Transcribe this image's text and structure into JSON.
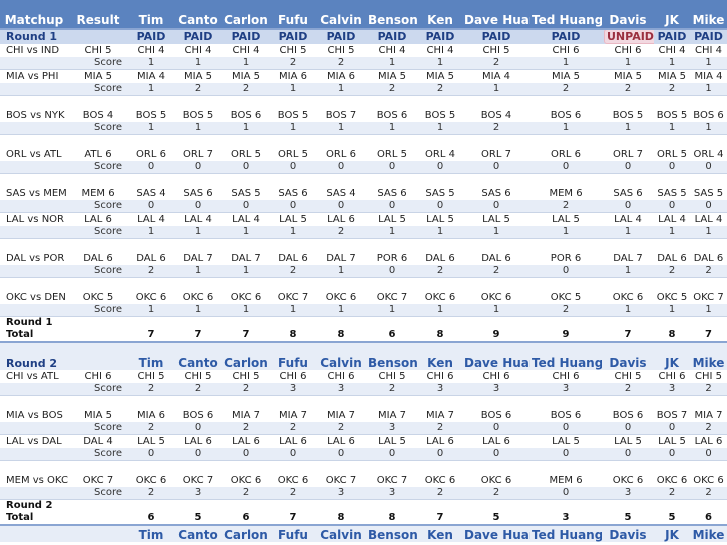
{
  "columns": [
    "Matchup",
    "Result",
    "Tim",
    "Canto",
    "Carlon",
    "Fufu",
    "Calvin",
    "Benson",
    "Ken",
    "Dave Huang",
    "Ted Huang",
    "Davis",
    "JK",
    "Mike"
  ],
  "round1": {
    "label": "Round 1",
    "status": [
      "PAID",
      "PAID",
      "PAID",
      "PAID",
      "PAID",
      "PAID",
      "PAID",
      "PAID",
      "PAID",
      "UNPAID",
      "PAID",
      "PAID"
    ],
    "games": [
      {
        "matchup": "CHI vs IND",
        "result": "CHI 5",
        "picks": [
          "CHI 4",
          "CHI 4",
          "CHI 4",
          "CHI 5",
          "CHI 5",
          "CHI 4",
          "CHI 4",
          "CHI 5",
          "CHI 6",
          "CHI 6",
          "CHI 4",
          "CHI 4"
        ],
        "score_label": "Score",
        "scores": [
          "1",
          "1",
          "1",
          "2",
          "2",
          "1",
          "1",
          "2",
          "1",
          "1",
          "1",
          "1"
        ],
        "tall": false
      },
      {
        "matchup": "MIA vs PHI",
        "result": "MIA 5",
        "picks": [
          "MIA 4",
          "MIA 5",
          "MIA 5",
          "MIA 6",
          "MIA 6",
          "MIA 5",
          "MIA 5",
          "MIA 4",
          "MIA 5",
          "MIA 5",
          "MIA 5",
          "MIA 4"
        ],
        "score_label": "Score",
        "scores": [
          "1",
          "2",
          "2",
          "1",
          "1",
          "2",
          "2",
          "1",
          "2",
          "2",
          "2",
          "1"
        ],
        "tall": false
      },
      {
        "matchup": "BOS vs NYK",
        "result": "BOS 4",
        "picks": [
          "BOS 5",
          "BOS 5",
          "BOS 6",
          "BOS 5",
          "BOS 7",
          "BOS 6",
          "BOS 5",
          "BOS 4",
          "BOS 6",
          "BOS 5",
          "BOS 5",
          "BOS 6"
        ],
        "score_label": "Score",
        "scores": [
          "1",
          "1",
          "1",
          "1",
          "1",
          "1",
          "1",
          "2",
          "1",
          "1",
          "1",
          "1"
        ],
        "tall": true
      },
      {
        "matchup": "ORL vs ATL",
        "result": "ATL 6",
        "picks": [
          "ORL 6",
          "ORL 7",
          "ORL 5",
          "ORL 5",
          "ORL 6",
          "ORL 5",
          "ORL 4",
          "ORL 7",
          "ORL 6",
          "ORL 7",
          "ORL 5",
          "ORL 4"
        ],
        "score_label": "Score",
        "scores": [
          "0",
          "0",
          "0",
          "0",
          "0",
          "0",
          "0",
          "0",
          "0",
          "0",
          "0",
          "0"
        ],
        "tall": true
      },
      {
        "matchup": "SAS vs MEM",
        "result": "MEM 6",
        "picks": [
          "SAS 4",
          "SAS 6",
          "SAS 5",
          "SAS 6",
          "SAS 4",
          "SAS 6",
          "SAS 5",
          "SAS 6",
          "MEM 6",
          "SAS 6",
          "SAS 5",
          "SAS 5"
        ],
        "score_label": "Score",
        "scores": [
          "0",
          "0",
          "0",
          "0",
          "0",
          "0",
          "0",
          "0",
          "2",
          "0",
          "0",
          "0"
        ],
        "tall": true
      },
      {
        "matchup": "LAL vs NOR",
        "result": "LAL 6",
        "picks": [
          "LAL 4",
          "LAL 4",
          "LAL 4",
          "LAL 5",
          "LAL 6",
          "LAL 5",
          "LAL 5",
          "LAL 5",
          "LAL 5",
          "LAL 4",
          "LAL 4",
          "LAL 4"
        ],
        "score_label": "Score",
        "scores": [
          "1",
          "1",
          "1",
          "1",
          "2",
          "1",
          "1",
          "1",
          "1",
          "1",
          "1",
          "1"
        ],
        "tall": false
      },
      {
        "matchup": "DAL vs POR",
        "result": "DAL 6",
        "picks": [
          "DAL 6",
          "DAL 7",
          "DAL 7",
          "DAL 6",
          "DAL 7",
          "POR 6",
          "DAL 6",
          "DAL 6",
          "POR 6",
          "DAL 7",
          "DAL 6",
          "DAL 6"
        ],
        "score_label": "Score",
        "scores": [
          "2",
          "1",
          "1",
          "2",
          "1",
          "0",
          "2",
          "2",
          "0",
          "1",
          "2",
          "2"
        ],
        "tall": true
      },
      {
        "matchup": "OKC vs DEN",
        "result": "OKC 5",
        "picks": [
          "OKC 6",
          "OKC 6",
          "OKC 6",
          "OKC 7",
          "OKC 6",
          "OKC 7",
          "OKC 6",
          "OKC 6",
          "OKC 5",
          "OKC 6",
          "OKC 5",
          "OKC 7"
        ],
        "score_label": "Score",
        "scores": [
          "1",
          "1",
          "1",
          "1",
          "1",
          "1",
          "1",
          "1",
          "2",
          "1",
          "1",
          "1"
        ],
        "tall": true
      }
    ],
    "total_title": "Round 1",
    "total_label": "Total",
    "totals": [
      "7",
      "7",
      "7",
      "8",
      "8",
      "6",
      "8",
      "9",
      "9",
      "7",
      "8",
      "7"
    ]
  },
  "round2": {
    "label": "Round 2",
    "games": [
      {
        "matchup": "CHI vs ATL",
        "result": "CHI 6",
        "picks": [
          "CHI 5",
          "CHI 5",
          "CHI 5",
          "CHI 6",
          "CHI 6",
          "CHI 5",
          "CHI 6",
          "CHI 6",
          "CHI 6",
          "CHI 5",
          "CHI 6",
          "CHI 5"
        ],
        "score_label": "Score",
        "scores": [
          "2",
          "2",
          "2",
          "3",
          "3",
          "2",
          "3",
          "3",
          "3",
          "2",
          "3",
          "2"
        ],
        "tall": false
      },
      {
        "matchup": "MIA vs BOS",
        "result": "MIA 5",
        "picks": [
          "MIA 6",
          "BOS 6",
          "MIA 7",
          "MIA 7",
          "MIA 7",
          "MIA 7",
          "MIA 7",
          "BOS 6",
          "BOS 6",
          "BOS 6",
          "BOS 7",
          "MIA 7"
        ],
        "score_label": "Score",
        "scores": [
          "2",
          "0",
          "2",
          "2",
          "2",
          "3",
          "2",
          "0",
          "0",
          "0",
          "0",
          "2"
        ],
        "tall": true
      },
      {
        "matchup": "LAL vs DAL",
        "result": "DAL 4",
        "picks": [
          "LAL 5",
          "LAL 6",
          "LAL 6",
          "LAL 6",
          "LAL 6",
          "LAL 5",
          "LAL 6",
          "LAL 6",
          "LAL 5",
          "LAL 5",
          "LAL 5",
          "LAL 6"
        ],
        "score_label": "Score",
        "scores": [
          "0",
          "0",
          "0",
          "0",
          "0",
          "0",
          "0",
          "0",
          "0",
          "0",
          "0",
          "0"
        ],
        "tall": false
      },
      {
        "matchup": "MEM vs OKC",
        "result": "OKC 7",
        "picks": [
          "OKC 6",
          "OKC 7",
          "OKC 6",
          "OKC 6",
          "OKC 7",
          "OKC 7",
          "OKC 6",
          "OKC 6",
          "MEM 6",
          "OKC 6",
          "OKC 6",
          "OKC 6"
        ],
        "score_label": "Score",
        "scores": [
          "2",
          "3",
          "2",
          "2",
          "3",
          "3",
          "2",
          "2",
          "0",
          "3",
          "2",
          "2"
        ],
        "tall": true
      }
    ],
    "total_title": "Round 2",
    "total_label": "Total",
    "totals": [
      "6",
      "5",
      "6",
      "7",
      "8",
      "8",
      "7",
      "5",
      "3",
      "5",
      "5",
      "6"
    ]
  },
  "colors": {
    "header_bg": "#5b83bf",
    "round_bg": "#ccd9ee",
    "score_bg": "#e7edf7",
    "unpaid_bg": "#f2d8e0",
    "header_text": "#2e5aa6"
  }
}
